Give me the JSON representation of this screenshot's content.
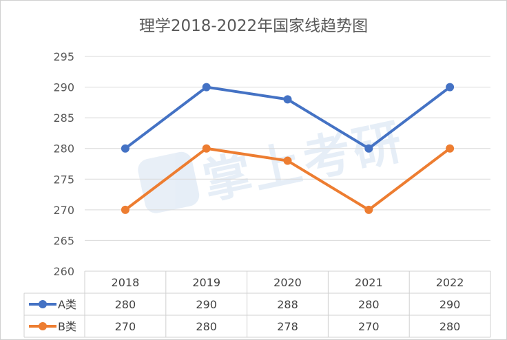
{
  "chart_data": {
    "type": "line",
    "title": "理学2018-2022年国家线趋势图",
    "categories": [
      "2018",
      "2019",
      "2020",
      "2021",
      "2022"
    ],
    "ylim": [
      260,
      295
    ],
    "yticks": [
      260,
      265,
      270,
      275,
      280,
      285,
      290,
      295
    ],
    "grid": true,
    "legend": "data-table",
    "series": [
      {
        "name": "A类",
        "values": [
          280,
          290,
          288,
          280,
          290
        ],
        "color": "#4472c4"
      },
      {
        "name": "B类",
        "values": [
          270,
          280,
          278,
          270,
          280
        ],
        "color": "#ed7d31"
      }
    ]
  },
  "watermark": {
    "text": "掌上考研"
  }
}
